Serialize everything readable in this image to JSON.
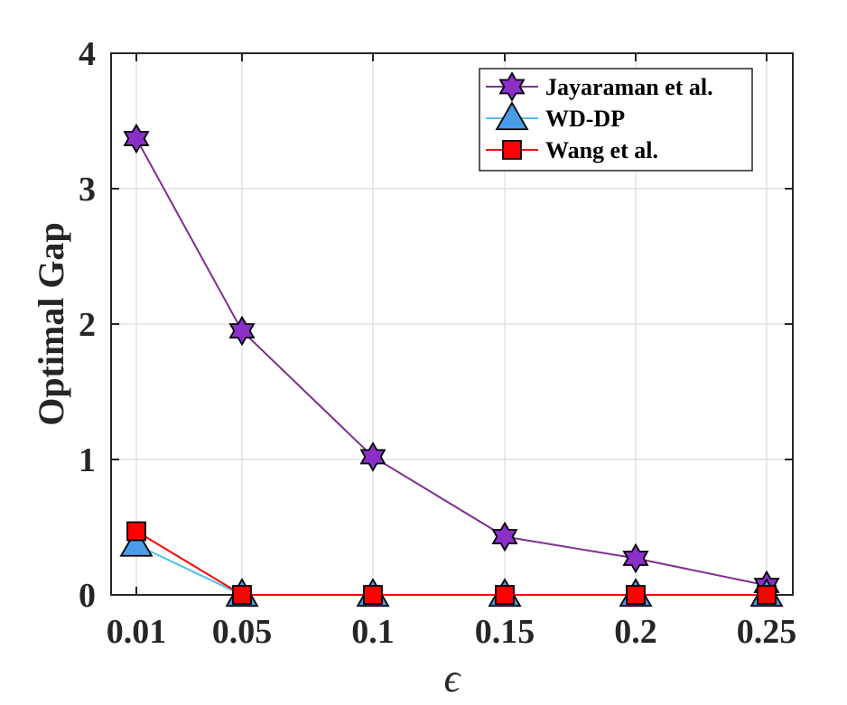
{
  "chart_data": {
    "type": "line",
    "x": [
      0.01,
      0.05,
      0.1,
      0.15,
      0.2,
      0.25
    ],
    "x_tick_labels": [
      "0.01",
      "0.05",
      "0.1",
      "0.15",
      "0.2",
      "0.25"
    ],
    "y_tick_labels": [
      "0",
      "1",
      "2",
      "3",
      "4"
    ],
    "y_ticks": [
      0,
      1,
      2,
      3,
      4
    ],
    "ylim": [
      0,
      4
    ],
    "xlabel": "ϵ",
    "ylabel": "Optimal Gap",
    "title": "",
    "grid": true,
    "legend_position": "top-right",
    "series": [
      {
        "name": "Jayaraman et al.",
        "values": [
          3.37,
          1.95,
          1.02,
          0.43,
          0.27,
          0.07
        ],
        "color": "#7E2F8E",
        "marker_fill": "#8B2FC9",
        "marker": "hexagram"
      },
      {
        "name": "WD-DP",
        "values": [
          0.37,
          0.0,
          0.0,
          0.0,
          0.0,
          0.0
        ],
        "color": "#4DBEEE",
        "marker_fill": "#4A9BE8",
        "marker": "triangle"
      },
      {
        "name": "Wang et al.",
        "values": [
          0.47,
          0.0,
          0.0,
          0.0,
          0.0,
          0.0
        ],
        "color": "#FF0000",
        "marker_fill": "#FF0000",
        "marker": "square"
      }
    ]
  }
}
